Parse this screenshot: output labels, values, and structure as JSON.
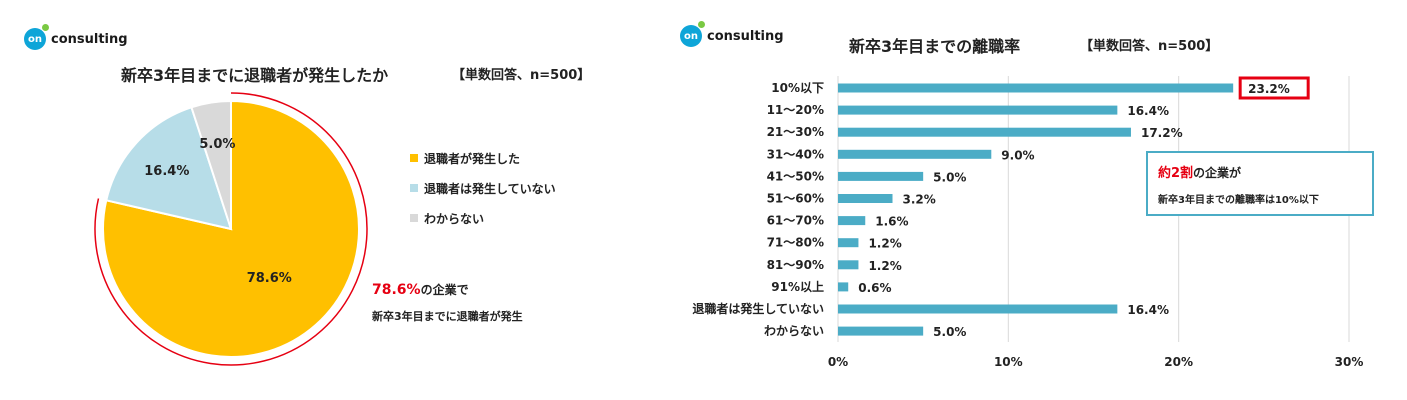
{
  "left": {
    "logo_text": "consulting",
    "logo_mark": "on",
    "title": "新卒3年目までに退職者が発生したか",
    "subtitle": "【単数回答、n=500】",
    "callout_highlight": "78.6%",
    "callout_suffix": "の企業で",
    "callout_line2": "新卒3年目までに退職者が発生"
  },
  "right": {
    "logo_text": "consulting",
    "logo_mark": "on",
    "title": "新卒3年目までの離職率",
    "subtitle": "【単数回答、n=500】",
    "callout_highlight": "約2割",
    "callout_suffix": "の企業が",
    "callout_line2": "新卒3年目までの離職率は10%以下"
  },
  "colors": {
    "pie_occurred": "#ffc000",
    "pie_not_occurred": "#b7dde8",
    "pie_unknown": "#d9d9d9",
    "bar": "#4bacc6",
    "highlight_red": "#e60012",
    "arc_red": "#e60012",
    "grid": "#d9d9d9"
  },
  "chart_data": [
    {
      "type": "pie",
      "title": "新卒3年目までに退職者が発生したか",
      "subtitle": "【単数回答、n=500】",
      "slices": [
        {
          "label": "退職者が発生した",
          "value": 78.6,
          "display": "78.6%",
          "color": "#ffc000"
        },
        {
          "label": "退職者は発生していない",
          "value": 16.4,
          "display": "16.4%",
          "color": "#b7dde8"
        },
        {
          "label": "わからない",
          "value": 5.0,
          "display": "5.0%",
          "color": "#d9d9d9"
        }
      ],
      "legend_position": "right"
    },
    {
      "type": "bar",
      "orientation": "horizontal",
      "title": "新卒3年目までの離職率",
      "subtitle": "【単数回答、n=500】",
      "categories": [
        "10%以下",
        "11～20%",
        "21～30%",
        "31～40%",
        "41～50%",
        "51～60%",
        "61～70%",
        "71～80%",
        "81～90%",
        "91%以上",
        "退職者は発生していない",
        "わからない"
      ],
      "values": [
        23.2,
        16.4,
        17.2,
        9.0,
        5.0,
        3.2,
        1.6,
        1.2,
        1.2,
        0.6,
        16.4,
        5.0
      ],
      "labels": [
        "23.2%",
        "16.4%",
        "17.2%",
        "9.0%",
        "5.0%",
        "3.2%",
        "1.6%",
        "1.2%",
        "1.2%",
        "0.6%",
        "16.4%",
        "5.0%"
      ],
      "highlight_index": 0,
      "xlim": [
        0,
        30
      ],
      "xticks": [
        0,
        10,
        20,
        30
      ],
      "xtick_labels": [
        "0%",
        "10%",
        "20%",
        "30%"
      ],
      "grid": true
    }
  ]
}
